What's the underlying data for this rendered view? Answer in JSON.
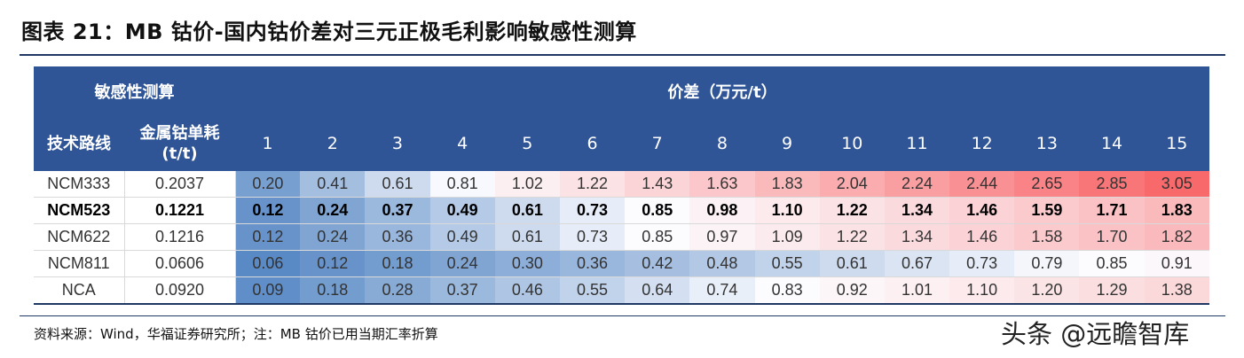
{
  "title": "图表 21：MB 钴价-国内钴价差对三元正极毛利影响敏感性测算",
  "table": {
    "header_left": "敏感性测算",
    "header_spread": "价差（万元/t）",
    "col_route": "技术路线",
    "col_cobalt_line1": "金属钴单耗",
    "col_cobalt_line2": "(t/t)",
    "spreads": [
      "1",
      "2",
      "3",
      "4",
      "5",
      "6",
      "7",
      "8",
      "9",
      "10",
      "11",
      "12",
      "13",
      "14",
      "15"
    ],
    "rows": [
      {
        "route": "NCM333",
        "cobalt": "0.2037",
        "values": [
          "0.20",
          "0.41",
          "0.61",
          "0.81",
          "1.02",
          "1.22",
          "1.43",
          "1.63",
          "1.83",
          "2.04",
          "2.24",
          "2.44",
          "2.65",
          "2.85",
          "3.05"
        ]
      },
      {
        "route": "NCM523",
        "cobalt": "0.1221",
        "values": [
          "0.12",
          "0.24",
          "0.37",
          "0.49",
          "0.61",
          "0.73",
          "0.85",
          "0.98",
          "1.10",
          "1.22",
          "1.34",
          "1.46",
          "1.59",
          "1.71",
          "1.83"
        ]
      },
      {
        "route": "NCM622",
        "cobalt": "0.1216",
        "values": [
          "0.12",
          "0.24",
          "0.36",
          "0.49",
          "0.61",
          "0.73",
          "0.85",
          "0.97",
          "1.09",
          "1.22",
          "1.34",
          "1.46",
          "1.58",
          "1.70",
          "1.82"
        ]
      },
      {
        "route": "NCM811",
        "cobalt": "0.0606",
        "values": [
          "0.06",
          "0.12",
          "0.18",
          "0.24",
          "0.30",
          "0.36",
          "0.42",
          "0.48",
          "0.55",
          "0.61",
          "0.67",
          "0.73",
          "0.79",
          "0.85",
          "0.91"
        ]
      },
      {
        "route": "NCA",
        "cobalt": "0.0920",
        "values": [
          "0.09",
          "0.18",
          "0.28",
          "0.37",
          "0.46",
          "0.55",
          "0.64",
          "0.74",
          "0.83",
          "0.92",
          "1.01",
          "1.10",
          "1.20",
          "1.29",
          "1.38"
        ]
      }
    ],
    "bold_row": 1
  },
  "colors": {
    "header_bg": "#2f5597",
    "rule": "#1f3864",
    "scale_low": "#5a8ac6",
    "scale_mid": "#fcfcff",
    "scale_high": "#f8696b"
  },
  "source": "资料来源：Wind，华福证券研究所；注：MB 钴价已用当期汇率折算",
  "watermark": "头条 @远瞻智库"
}
